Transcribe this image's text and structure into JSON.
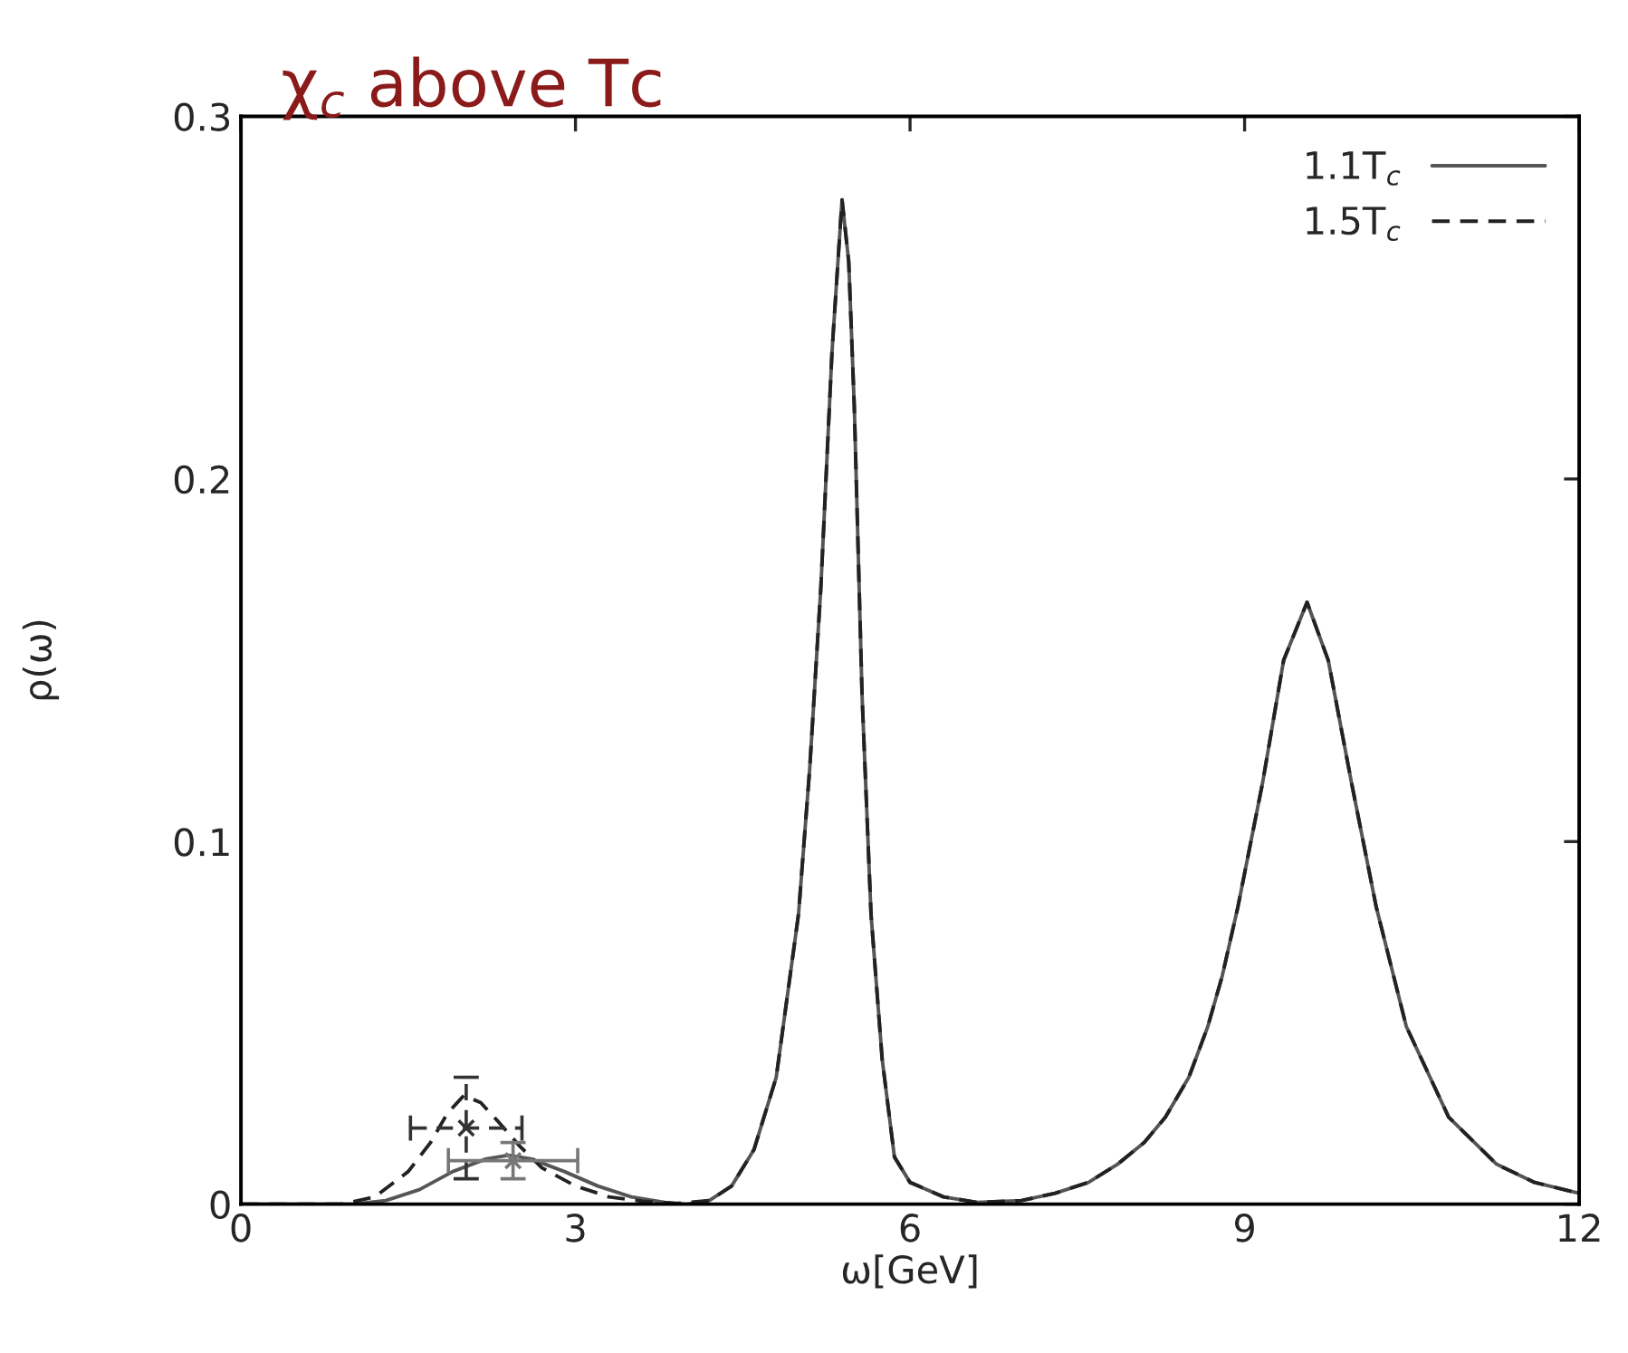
{
  "chart_data": {
    "type": "line",
    "title": "χ$_{c}$ above Tc",
    "xlabel": "ω[GeV]",
    "ylabel": "ρ(ω)",
    "xlim": [
      0,
      12
    ],
    "ylim": [
      0,
      0.3
    ],
    "xticks": [
      0,
      3,
      6,
      9,
      12
    ],
    "yticks": [
      0,
      0.1,
      0.2,
      0.3
    ],
    "grid": false,
    "legend": "top right",
    "series": [
      {
        "name": "1.1T$_{c}$",
        "color": "#555555",
        "line_style": "solid",
        "x": [
          0,
          1.0,
          1.3,
          1.6,
          1.9,
          2.2,
          2.4,
          2.6,
          2.9,
          3.2,
          3.5,
          3.8,
          4.0,
          4.2,
          4.4,
          4.6,
          4.8,
          5.0,
          5.1,
          5.2,
          5.3,
          5.39,
          5.45,
          5.5,
          5.57,
          5.65,
          5.75,
          5.86,
          6.0,
          6.3,
          6.6,
          7.0,
          7.3,
          7.6,
          7.86,
          8.1,
          8.29,
          8.5,
          8.67,
          8.8,
          8.94,
          9.16,
          9.35,
          9.56,
          9.75,
          9.96,
          10.18,
          10.45,
          10.83,
          11.26,
          11.6,
          12
        ],
        "values": [
          0,
          0,
          0.001,
          0.004,
          0.009,
          0.0125,
          0.0135,
          0.0125,
          0.009,
          0.005,
          0.002,
          0.0005,
          0,
          0.001,
          0.005,
          0.015,
          0.035,
          0.08,
          0.12,
          0.17,
          0.235,
          0.277,
          0.26,
          0.22,
          0.14,
          0.08,
          0.04,
          0.013,
          0.006,
          0.002,
          0.0005,
          0.001,
          0.003,
          0.006,
          0.011,
          0.017,
          0.024,
          0.035,
          0.049,
          0.063,
          0.082,
          0.116,
          0.15,
          0.166,
          0.15,
          0.116,
          0.082,
          0.049,
          0.024,
          0.011,
          0.006,
          0.003
        ]
      },
      {
        "name": "1.5T$_{c}$",
        "color": "#222222",
        "line_style": "dashed",
        "x": [
          0,
          0.9,
          1.2,
          1.5,
          1.7,
          1.85,
          2.0,
          2.15,
          2.3,
          2.5,
          2.7,
          3.0,
          3.3,
          3.6,
          3.9,
          4.2,
          4.4,
          4.6,
          4.8,
          5.0,
          5.1,
          5.2,
          5.3,
          5.39,
          5.45,
          5.5,
          5.57,
          5.65,
          5.75,
          5.86,
          6.0,
          6.3,
          6.6,
          7.0,
          7.3,
          7.6,
          7.86,
          8.1,
          8.29,
          8.5,
          8.67,
          8.8,
          8.94,
          9.16,
          9.35,
          9.56,
          9.75,
          9.96,
          10.18,
          10.45,
          10.83,
          11.26,
          11.6,
          12
        ],
        "values": [
          0,
          0,
          0.002,
          0.009,
          0.017,
          0.025,
          0.03,
          0.028,
          0.023,
          0.016,
          0.01,
          0.005,
          0.002,
          0.0008,
          0.0002,
          0.001,
          0.005,
          0.015,
          0.035,
          0.08,
          0.12,
          0.17,
          0.235,
          0.277,
          0.26,
          0.22,
          0.14,
          0.08,
          0.04,
          0.013,
          0.006,
          0.002,
          0.0005,
          0.001,
          0.003,
          0.006,
          0.011,
          0.017,
          0.024,
          0.035,
          0.049,
          0.063,
          0.082,
          0.116,
          0.15,
          0.166,
          0.15,
          0.116,
          0.082,
          0.049,
          0.024,
          0.011,
          0.006,
          0.003
        ]
      },
      {
        "type": "scatter",
        "marker": "cross",
        "color": "#777777",
        "line_style": "solid",
        "x": [
          2.44
        ],
        "values": [
          0.012
        ],
        "errors": [
          0.005
        ],
        "xerrors": [
          0.58
        ]
      },
      {
        "type": "scatter",
        "marker": "cross",
        "color": "#333333",
        "line_style": "dashed",
        "x": [
          2.02
        ],
        "values": [
          0.021
        ],
        "errors": [
          0.014
        ],
        "xerrors": [
          0.5
        ]
      }
    ]
  }
}
